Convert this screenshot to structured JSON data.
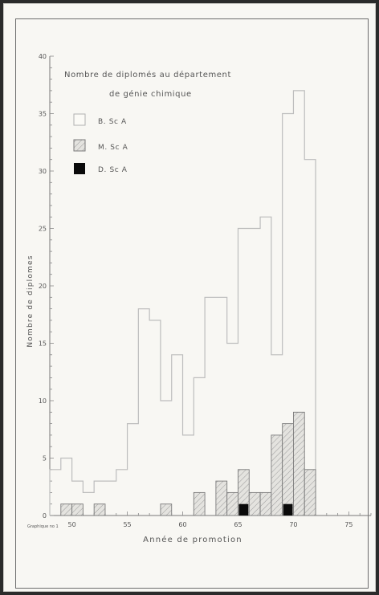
{
  "chart_data": {
    "type": "bar",
    "subtype": "stepped-histogram",
    "title_line1": "Nombre de diplomés au département",
    "title_line2": "de génie chimique",
    "xlabel": "Année de promotion",
    "ylabel": "Nombre de diplomes",
    "credit": "Graphique no 1",
    "xlim": [
      48,
      77
    ],
    "ylim": [
      0,
      40
    ],
    "x_ticks": [
      50,
      55,
      60,
      65,
      70,
      75
    ],
    "y_ticks": [
      0,
      5,
      10,
      15,
      20,
      25,
      30,
      35,
      40
    ],
    "legend": {
      "position": "top-left",
      "entries": [
        {
          "key": "bsc",
          "label": "B. Sc A"
        },
        {
          "key": "msc",
          "label": "M. Sc A"
        },
        {
          "key": "dsc",
          "label": "D. Sc A"
        }
      ]
    },
    "series": [
      {
        "name": "B. Sc A",
        "style": "outline",
        "color": "#bdbdbd",
        "years": [
          48,
          49,
          50,
          51,
          52,
          53,
          54,
          55,
          56,
          57,
          58,
          59,
          60,
          61,
          62,
          63,
          64,
          65,
          66,
          67,
          68,
          69,
          70,
          71
        ],
        "values": [
          4,
          5,
          3,
          2,
          3,
          3,
          4,
          8,
          18,
          17,
          10,
          14,
          7,
          12,
          19,
          19,
          15,
          25,
          25,
          26,
          14,
          35,
          37,
          31
        ]
      },
      {
        "name": "M. Sc A",
        "style": "hatched",
        "color": "#7a7a7a",
        "years": [
          48,
          49,
          50,
          51,
          52,
          53,
          54,
          55,
          56,
          57,
          58,
          59,
          60,
          61,
          62,
          63,
          64,
          65,
          66,
          67,
          68,
          69,
          70,
          71
        ],
        "values": [
          0,
          1,
          1,
          0,
          1,
          0,
          0,
          0,
          0,
          0,
          1,
          0,
          0,
          2,
          0,
          3,
          2,
          4,
          2,
          2,
          7,
          8,
          9,
          4
        ]
      },
      {
        "name": "D. Sc A",
        "style": "solid",
        "color": "#0a0a0a",
        "years": [
          65,
          69
        ],
        "values": [
          1,
          1
        ]
      }
    ]
  }
}
